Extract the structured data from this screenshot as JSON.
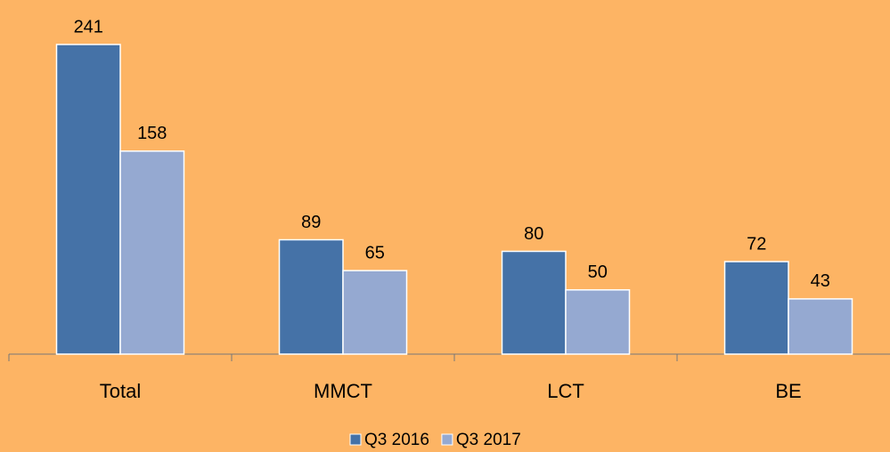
{
  "chart_data": {
    "type": "bar",
    "categories": [
      "Total",
      "MMCT",
      "LCT",
      "BE"
    ],
    "series": [
      {
        "name": "Q3 2016",
        "color": "#4572a7",
        "values": [
          241,
          89,
          80,
          72
        ]
      },
      {
        "name": "Q3 2017",
        "color": "#95a9d1",
        "values": [
          158,
          65,
          50,
          43
        ]
      }
    ],
    "background": "#fdb464"
  }
}
